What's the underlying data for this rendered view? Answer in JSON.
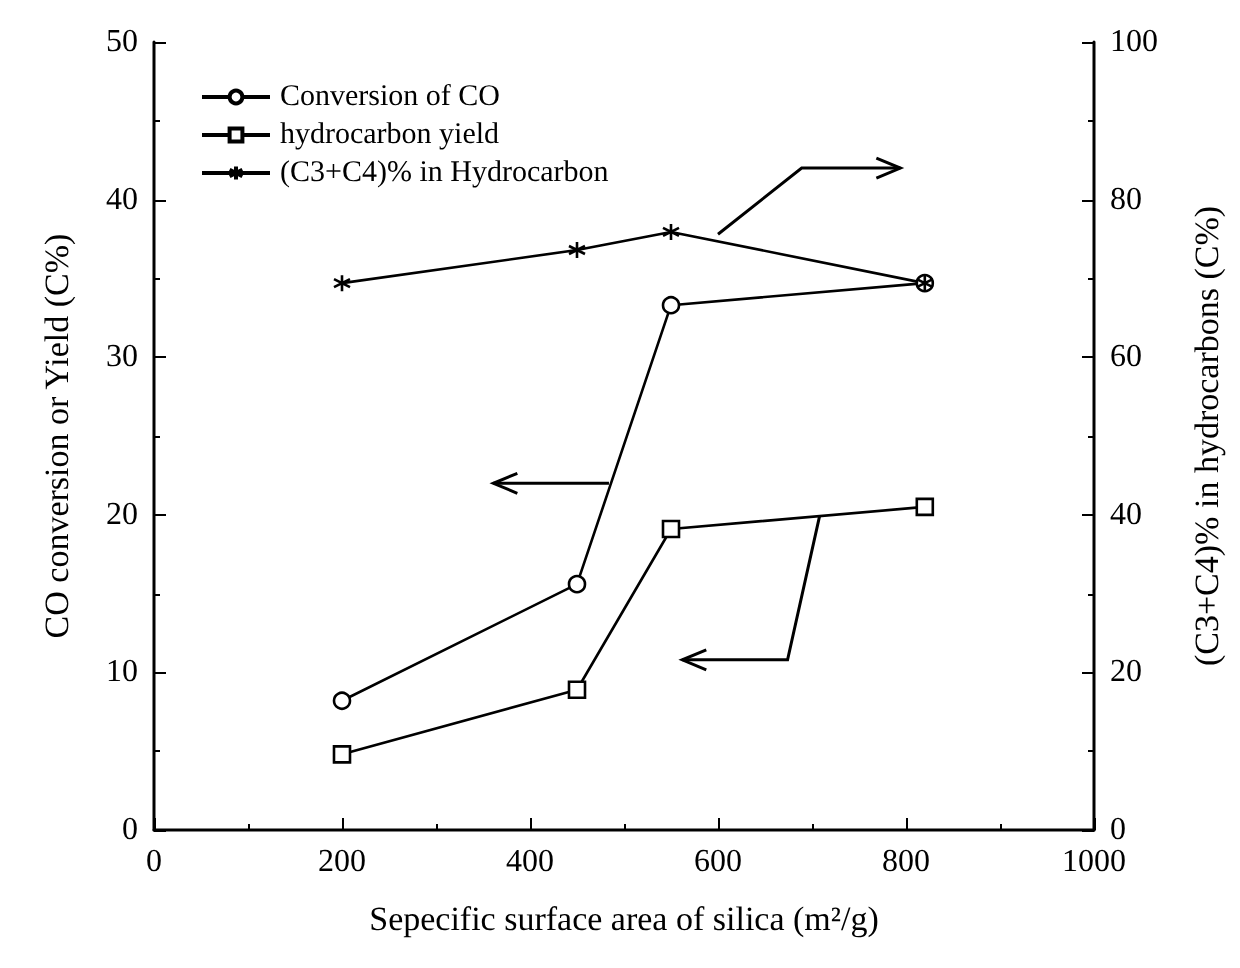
{
  "chart_data": {
    "type": "line",
    "xlabel": "Sepecific surface area of silica (m²/g)",
    "ylabel": "CO conversion or Yield (C%)",
    "y2label": "(C3+C4)% in hydrocarbons (C%)",
    "x": [
      200,
      450,
      550,
      820
    ],
    "series": [
      {
        "name": "Conversion of CO",
        "color": "#000000",
        "marker": "circle",
        "values": [
          8.2,
          15.6,
          33.3,
          34.7
        ]
      },
      {
        "name": "hydrocarbon yield",
        "color": "#000000",
        "marker": "square",
        "values": [
          4.8,
          8.9,
          19.1,
          20.5
        ]
      },
      {
        "name": "(C3+C4)% in Hydrocarbon",
        "color": "#000000",
        "marker": "star",
        "axis": "y2",
        "values": [
          69.4,
          73.6,
          75.9,
          69.4
        ]
      }
    ],
    "xlim": [
      0,
      1000
    ],
    "xticks": [
      0,
      200,
      400,
      600,
      800,
      1000
    ],
    "ylim": [
      0,
      50
    ],
    "yticks": [
      0,
      10,
      20,
      30,
      40,
      50
    ],
    "y2lim": [
      0,
      100
    ],
    "y2ticks": [
      0,
      20,
      40,
      60,
      80,
      100
    ],
    "grid": false,
    "legend": "top left",
    "line_style": "solid"
  }
}
